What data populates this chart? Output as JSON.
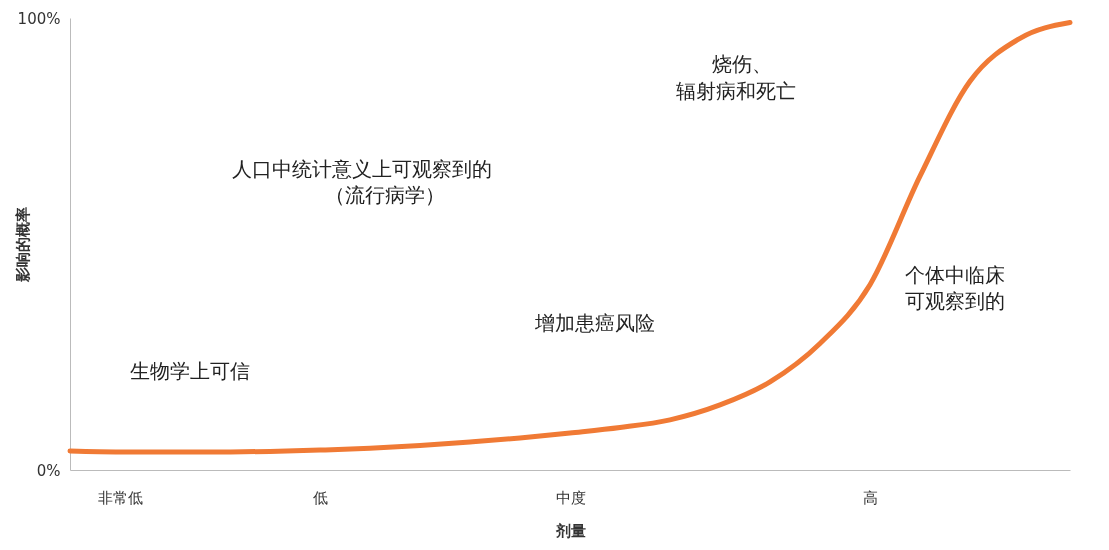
{
  "chart_data": {
    "type": "line",
    "xlabel": "剂量",
    "ylabel": "影响的概率",
    "categories": [
      null,
      "非常低",
      null,
      null,
      null,
      "低",
      null,
      null,
      null,
      null,
      "中度",
      null,
      null,
      null,
      null,
      null,
      "高",
      null,
      null,
      null,
      null
    ],
    "values": [
      4.2,
      4.0,
      4.0,
      4.0,
      4.1,
      4.4,
      4.8,
      5.4,
      6.2,
      7.1,
      8.2,
      9.4,
      11.1,
      14.4,
      19.5,
      28,
      41,
      65,
      86,
      95.5,
      99
    ],
    "color": "#f07a35",
    "ylim": [
      0,
      100
    ],
    "yticks": [
      {
        "value": 0,
        "label": "0%"
      },
      {
        "value": 100,
        "label": "100%"
      }
    ],
    "annotations": [
      "生物学上可信",
      "增加患癌风险",
      "人口中统计意义上可观察到的",
      "（流行病学）",
      "个体中临床",
      "可观察到的",
      "烧伤、",
      "辐射病和死亡"
    ]
  }
}
